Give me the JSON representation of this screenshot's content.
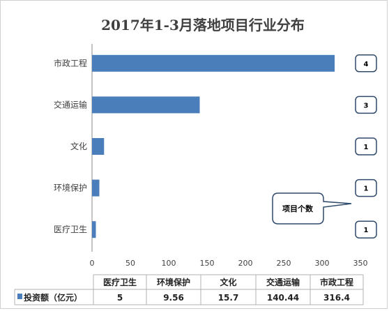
{
  "chart_data": {
    "type": "bar",
    "orientation": "horizontal",
    "title": "2017年1-3月落地项目行业分布",
    "categories": [
      "医疗卫生",
      "环境保护",
      "文化",
      "交通运输",
      "市政工程"
    ],
    "series": [
      {
        "name": "投资额（亿元）",
        "values": [
          5,
          9.56,
          15.7,
          140.44,
          316.4
        ],
        "color": "#4a7ebb"
      }
    ],
    "value_labels": [
      "5",
      "9.56",
      "15.7",
      "140.44",
      "316.4"
    ],
    "project_counts": [
      "1",
      "1",
      "1",
      "3",
      "4"
    ],
    "callout": "项目个数",
    "xlim": [
      0,
      350
    ],
    "x_ticks": [
      "0",
      "50",
      "100",
      "150",
      "200",
      "250",
      "300",
      "350"
    ],
    "grid": false,
    "legend": "data-table-bottom"
  }
}
